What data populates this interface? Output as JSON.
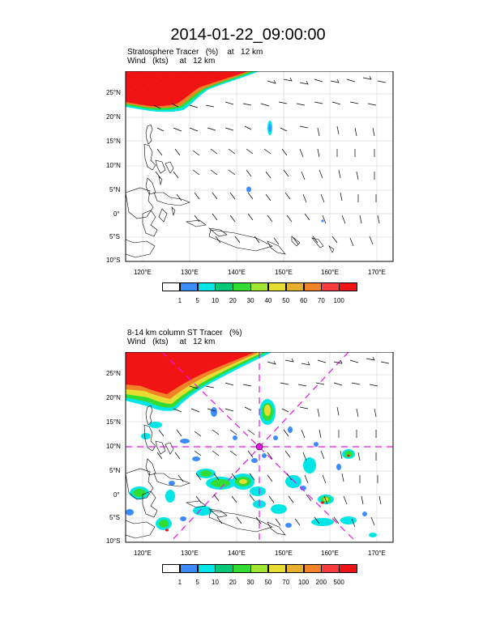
{
  "page_title": "2014-01-22_09:00:00",
  "top_panel": {
    "subtitle_line1": "Stratosphere Tracer   (%)    at   12 km",
    "subtitle_line2": "Wind   (kts)     at   12 km",
    "lat_labels": [
      "25°N",
      "20°N",
      "15°N",
      "10°N",
      "5°N",
      "0°",
      "5°S",
      "10°S"
    ],
    "lon_labels": [
      "120°E",
      "130°E",
      "140°E",
      "150°E",
      "160°E",
      "170°E"
    ],
    "colorbar_labels": [
      "1",
      "5",
      "10",
      "20",
      "30",
      "40",
      "50",
      "60",
      "70",
      "100"
    ],
    "colorbar_colors": [
      "#ffffff",
      "#3c8cff",
      "#00e6e6",
      "#00c878",
      "#32dc32",
      "#a0e632",
      "#e6dc32",
      "#e6af2d",
      "#f08228",
      "#fa3c3c",
      "#f01414"
    ]
  },
  "bottom_panel": {
    "subtitle_line1": "8-14 km column ST Tracer   (%)",
    "subtitle_line2": "Wind   (kts)     at   12 km",
    "lat_labels": [
      "25°N",
      "20°N",
      "15°N",
      "10°N",
      "5°N",
      "0°",
      "5°S",
      "10°S"
    ],
    "lon_labels": [
      "120°E",
      "130°E",
      "140°E",
      "150°E",
      "160°E",
      "170°E"
    ],
    "colorbar_labels": [
      "1",
      "5",
      "10",
      "20",
      "30",
      "50",
      "70",
      "100",
      "200",
      "500"
    ],
    "colorbar_colors": [
      "#ffffff",
      "#3c8cff",
      "#00e6e6",
      "#00c878",
      "#32dc32",
      "#a0e632",
      "#e6dc32",
      "#e6af2d",
      "#f08228",
      "#fa3c3c",
      "#f01414"
    ]
  },
  "colors": {
    "tracer_red": "#f01414",
    "tracer_orange": "#f08228",
    "tracer_green": "#32dc32",
    "tracer_cyan": "#00e6e6",
    "tracer_blue": "#3c8cff",
    "crosshair_magenta": "#e614e6",
    "grid": "#c8c8c8"
  }
}
